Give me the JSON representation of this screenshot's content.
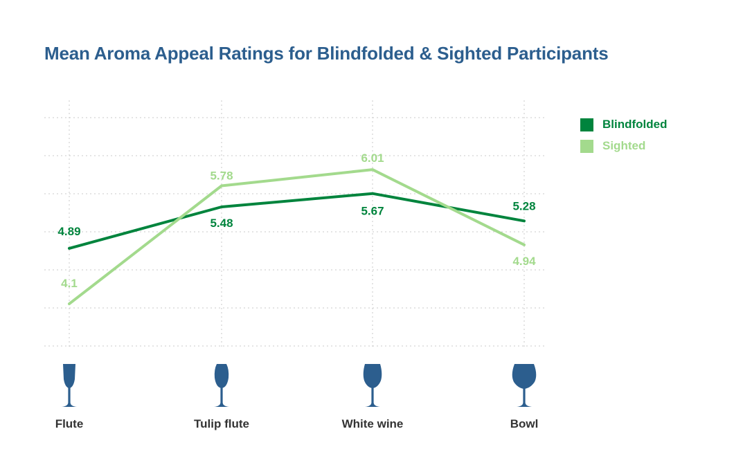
{
  "chart_data": {
    "type": "line",
    "title": "Mean Aroma Appeal Ratings for Blindfolded & Sighted Participants",
    "categories": [
      "Flute",
      "Tulip flute",
      "White wine",
      "Bowl"
    ],
    "category_icons": [
      "flute-glass-icon",
      "tulip-flute-glass-icon",
      "white-wine-glass-icon",
      "bowl-glass-icon"
    ],
    "series": [
      {
        "name": "Blindfolded",
        "values": [
          4.89,
          5.48,
          5.67,
          5.28
        ],
        "color": "#00843d",
        "labels": [
          "4.89",
          "5.48",
          "5.67",
          "5.28"
        ]
      },
      {
        "name": "Sighted",
        "values": [
          4.1,
          5.78,
          6.01,
          4.94
        ],
        "color": "#a3da8d",
        "labels": [
          "4.1",
          "5.78",
          "6.01",
          "4.94"
        ]
      }
    ],
    "ylim": [
      3.5,
      6.75
    ],
    "grid": true,
    "legend_position": "top-right",
    "icon_color": "#2c5e8e"
  }
}
